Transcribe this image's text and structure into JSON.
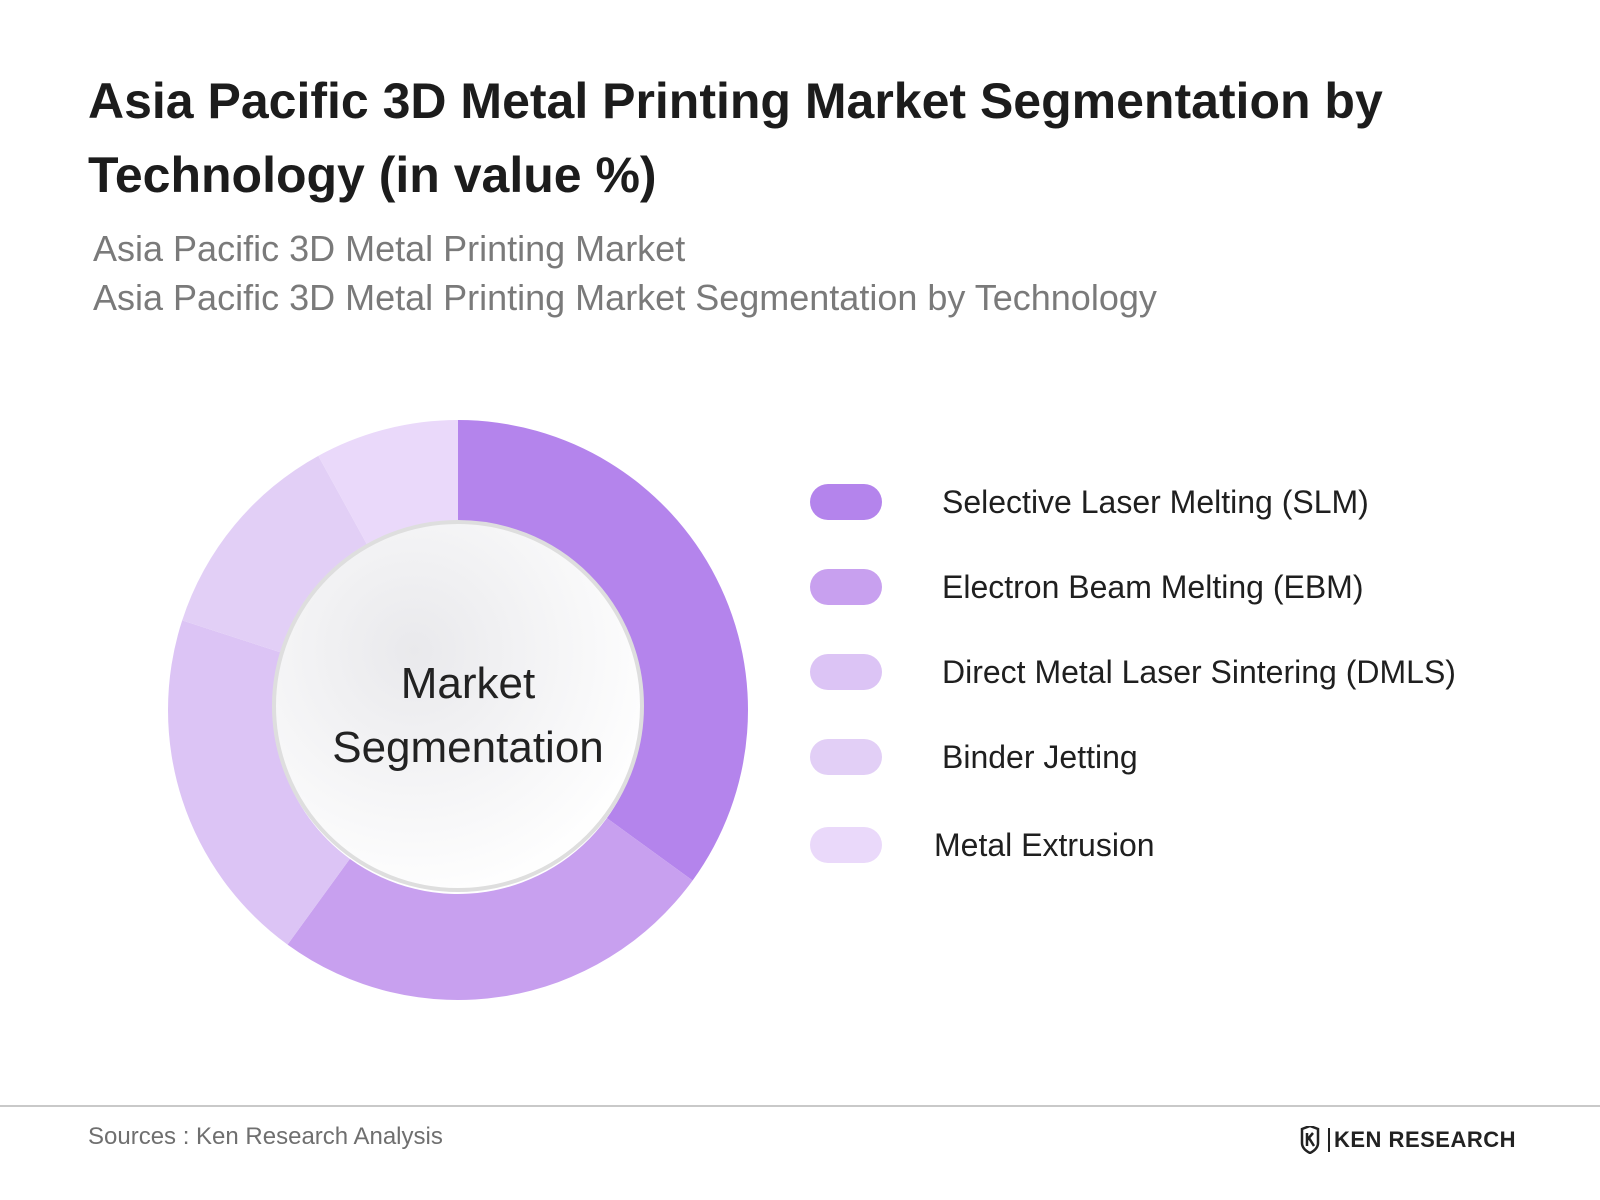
{
  "title": "Asia Pacific 3D Metal Printing Market Segmentation by Technology (in value %)",
  "subtitle_line1": "Asia Pacific 3D Metal Printing Market",
  "subtitle_line2": "Asia Pacific 3D Metal Printing Market Segmentation by Technology",
  "center_label_line1": "Market",
  "center_label_line2": "Segmentation",
  "source": "Sources : Ken Research Analysis",
  "brand": "KEN RESEARCH",
  "brand_icon": "ken-research-logo-icon",
  "chart_data": {
    "type": "pie",
    "variant": "donut",
    "categories": [
      "Selective Laser Melting (SLM)",
      "Electron Beam Melting (EBM)",
      "Direct Metal Laser Sintering (DMLS)",
      "Binder Jetting",
      "Metal Extrusion"
    ],
    "values": [
      35,
      25,
      20,
      12,
      8
    ],
    "colors": [
      "#b484ec",
      "#c8a0ef",
      "#dcc4f5",
      "#e2cff6",
      "#ead9fa"
    ],
    "legend": "right"
  }
}
